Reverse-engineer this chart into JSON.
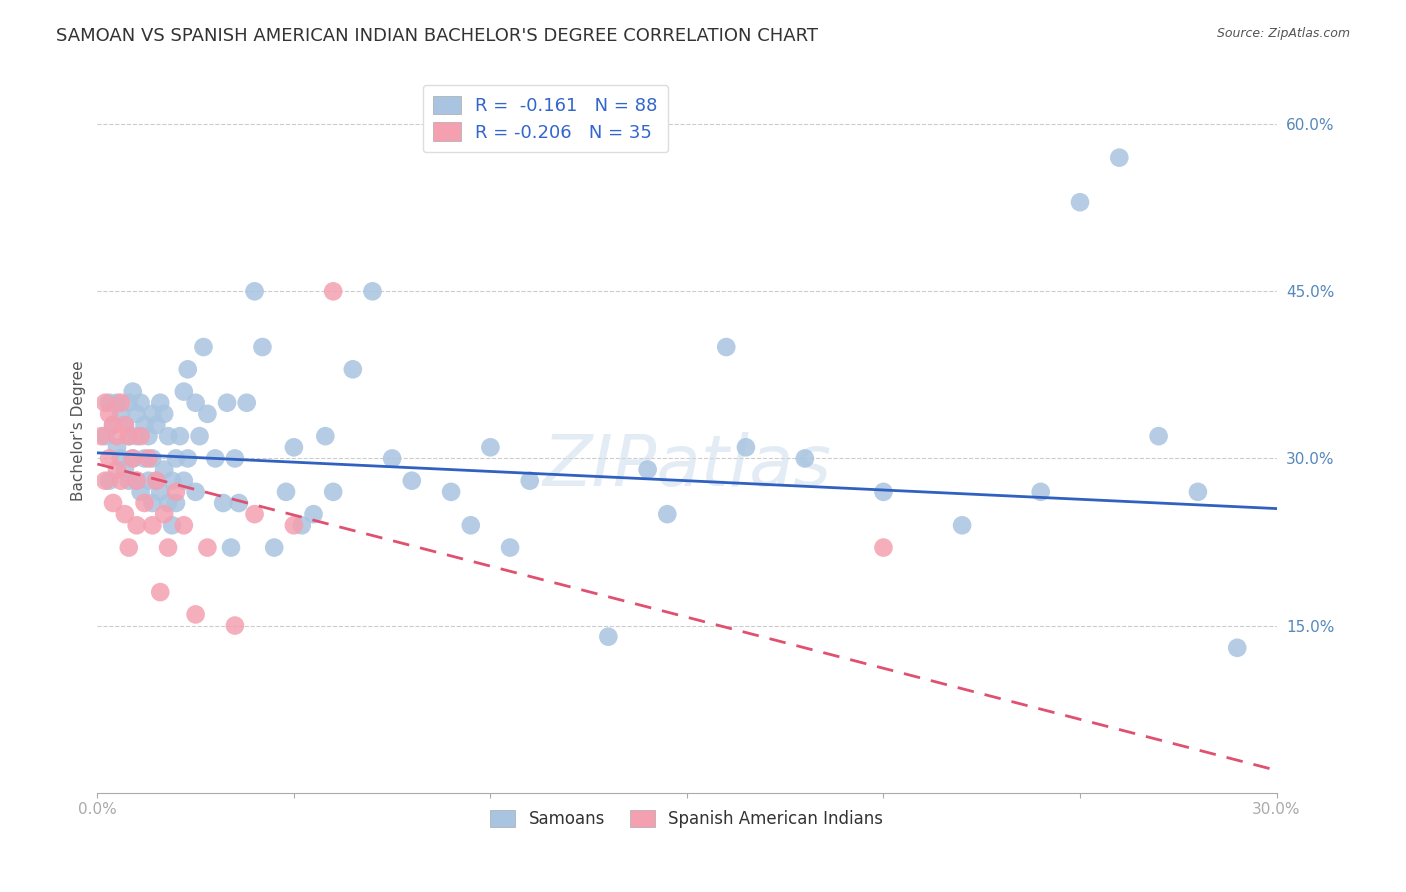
{
  "title": "SAMOAN VS SPANISH AMERICAN INDIAN BACHELOR'S DEGREE CORRELATION CHART",
  "source": "Source: ZipAtlas.com",
  "ylabel": "Bachelor's Degree",
  "watermark": "ZIPatlas",
  "x_min": 0.0,
  "x_max": 0.3,
  "y_min": 0.0,
  "y_max": 0.65,
  "x_ticks": [
    0.0,
    0.05,
    0.1,
    0.15,
    0.2,
    0.25,
    0.3
  ],
  "y_ticks": [
    0.15,
    0.3,
    0.45,
    0.6
  ],
  "y_tick_labels": [
    "15.0%",
    "30.0%",
    "45.0%",
    "60.0%"
  ],
  "samoan_color": "#a8c4e0",
  "spanish_color": "#f4a0b0",
  "samoan_line_color": "#3060c0",
  "spanish_line_color": "#e05070",
  "spanish_line_dash": [
    6,
    4
  ],
  "R_samoan": -0.161,
  "N_samoan": 88,
  "R_spanish": -0.206,
  "N_spanish": 35,
  "legend_label_samoan": "Samoans",
  "legend_label_spanish": "Spanish American Indians",
  "samoan_x": [
    0.002,
    0.003,
    0.003,
    0.004,
    0.005,
    0.005,
    0.006,
    0.006,
    0.007,
    0.007,
    0.008,
    0.008,
    0.008,
    0.009,
    0.009,
    0.01,
    0.01,
    0.01,
    0.011,
    0.011,
    0.012,
    0.012,
    0.013,
    0.013,
    0.014,
    0.014,
    0.014,
    0.015,
    0.015,
    0.016,
    0.016,
    0.017,
    0.017,
    0.018,
    0.018,
    0.019,
    0.019,
    0.02,
    0.02,
    0.021,
    0.022,
    0.022,
    0.023,
    0.023,
    0.025,
    0.025,
    0.026,
    0.027,
    0.028,
    0.03,
    0.032,
    0.033,
    0.034,
    0.035,
    0.036,
    0.038,
    0.04,
    0.042,
    0.045,
    0.048,
    0.05,
    0.052,
    0.055,
    0.058,
    0.06,
    0.065,
    0.07,
    0.075,
    0.08,
    0.09,
    0.095,
    0.1,
    0.105,
    0.11,
    0.13,
    0.14,
    0.16,
    0.18,
    0.2,
    0.22,
    0.24,
    0.25,
    0.26,
    0.27,
    0.28,
    0.29,
    0.145,
    0.165
  ],
  "samoan_y": [
    0.32,
    0.35,
    0.28,
    0.33,
    0.35,
    0.31,
    0.34,
    0.3,
    0.33,
    0.29,
    0.32,
    0.35,
    0.28,
    0.36,
    0.3,
    0.34,
    0.28,
    0.32,
    0.35,
    0.27,
    0.33,
    0.3,
    0.32,
    0.28,
    0.34,
    0.3,
    0.26,
    0.33,
    0.28,
    0.35,
    0.27,
    0.34,
    0.29,
    0.32,
    0.26,
    0.28,
    0.24,
    0.3,
    0.26,
    0.32,
    0.36,
    0.28,
    0.38,
    0.3,
    0.35,
    0.27,
    0.32,
    0.4,
    0.34,
    0.3,
    0.26,
    0.35,
    0.22,
    0.3,
    0.26,
    0.35,
    0.45,
    0.4,
    0.22,
    0.27,
    0.31,
    0.24,
    0.25,
    0.32,
    0.27,
    0.38,
    0.45,
    0.3,
    0.28,
    0.27,
    0.24,
    0.31,
    0.22,
    0.28,
    0.14,
    0.29,
    0.4,
    0.3,
    0.27,
    0.24,
    0.27,
    0.53,
    0.57,
    0.32,
    0.27,
    0.13,
    0.25,
    0.31
  ],
  "spanish_x": [
    0.001,
    0.002,
    0.002,
    0.003,
    0.003,
    0.004,
    0.004,
    0.005,
    0.005,
    0.006,
    0.006,
    0.007,
    0.007,
    0.008,
    0.008,
    0.009,
    0.01,
    0.01,
    0.011,
    0.012,
    0.013,
    0.014,
    0.015,
    0.016,
    0.017,
    0.018,
    0.02,
    0.022,
    0.025,
    0.028,
    0.035,
    0.04,
    0.05,
    0.06,
    0.2
  ],
  "spanish_y": [
    0.32,
    0.35,
    0.28,
    0.34,
    0.3,
    0.33,
    0.26,
    0.32,
    0.29,
    0.35,
    0.28,
    0.33,
    0.25,
    0.32,
    0.22,
    0.3,
    0.28,
    0.24,
    0.32,
    0.26,
    0.3,
    0.24,
    0.28,
    0.18,
    0.25,
    0.22,
    0.27,
    0.24,
    0.16,
    0.22,
    0.15,
    0.25,
    0.24,
    0.45,
    0.22
  ],
  "samoan_trendline_x": [
    0.0,
    0.3
  ],
  "samoan_trendline_y": [
    0.305,
    0.255
  ],
  "spanish_trendline_x": [
    0.0,
    0.3
  ],
  "spanish_trendline_y": [
    0.295,
    0.02
  ],
  "background_color": "#ffffff",
  "grid_color": "#cccccc",
  "axis_color": "#5588bb",
  "title_fontsize": 13,
  "label_fontsize": 11
}
